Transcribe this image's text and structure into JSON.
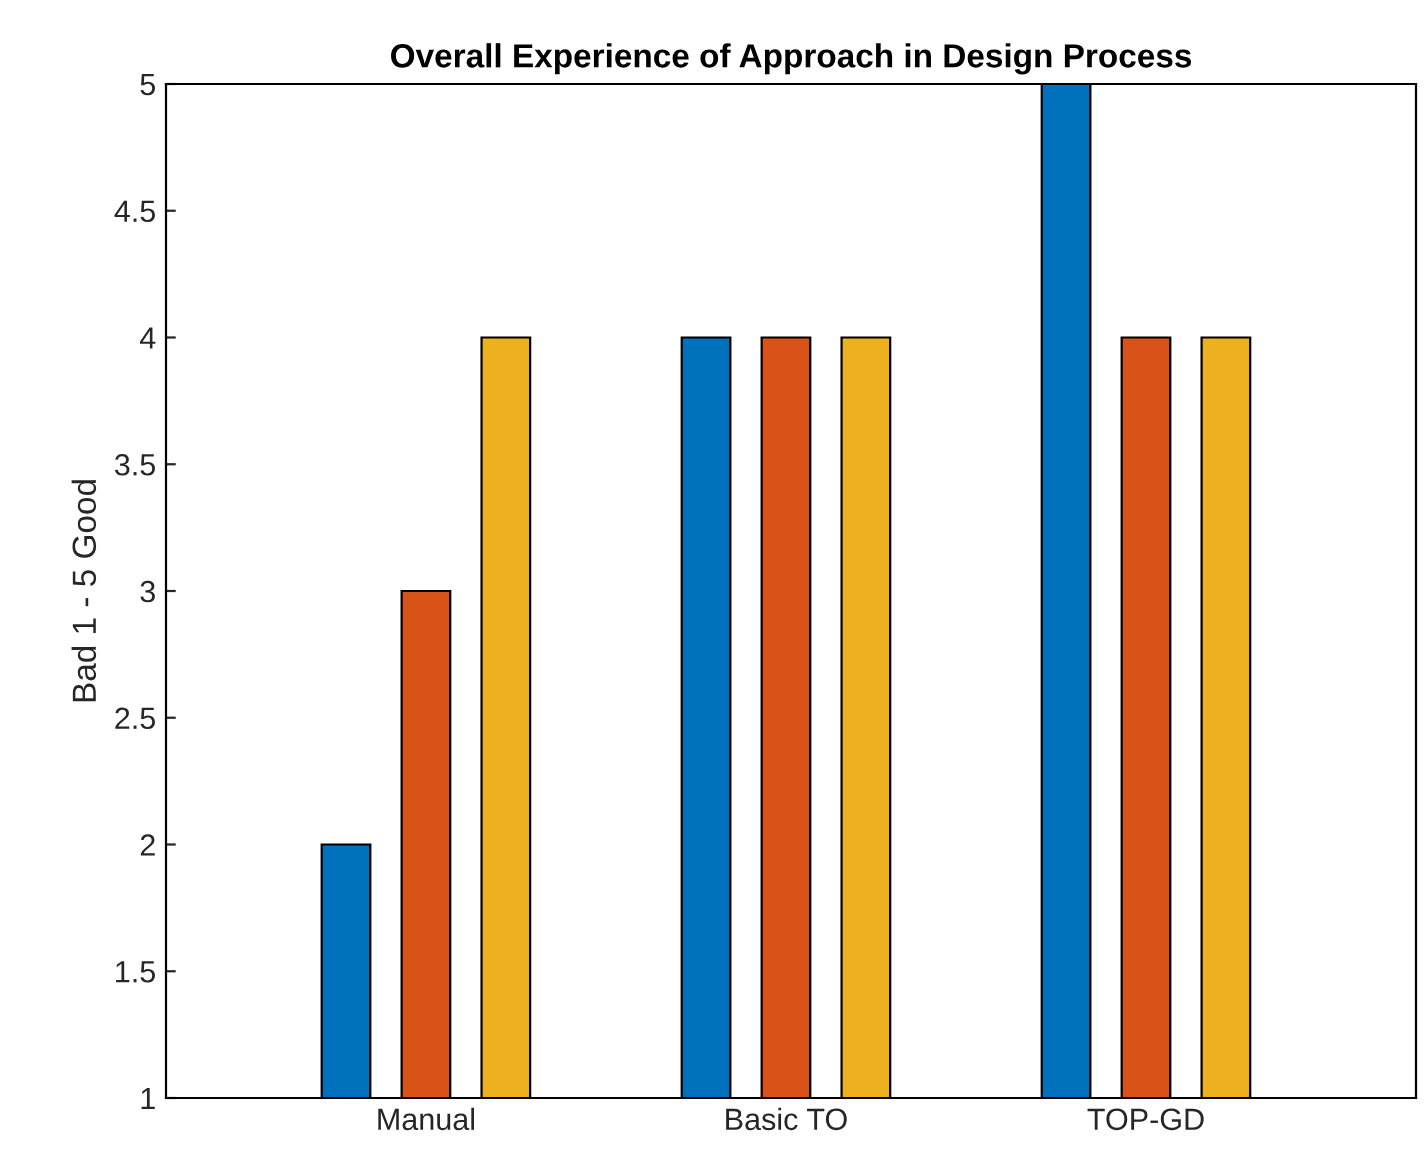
{
  "chart_data": {
    "type": "bar",
    "title": "Overall Experience of Approach in Design Process",
    "ylabel": "Bad 1 - 5 Good",
    "categories": [
      "Manual",
      "Basic TO",
      "TOP-GD"
    ],
    "series": [
      {
        "color": "#0072bd",
        "values": [
          2,
          4,
          5
        ]
      },
      {
        "color": "#d95319",
        "values": [
          3,
          4,
          4
        ]
      },
      {
        "color": "#edb120",
        "values": [
          4,
          4,
          4
        ]
      }
    ],
    "ylim": [
      1,
      5
    ],
    "yticks": [
      1,
      1.5,
      2,
      2.5,
      3,
      3.5,
      4,
      4.5,
      5
    ],
    "grid": false,
    "legend": false
  }
}
